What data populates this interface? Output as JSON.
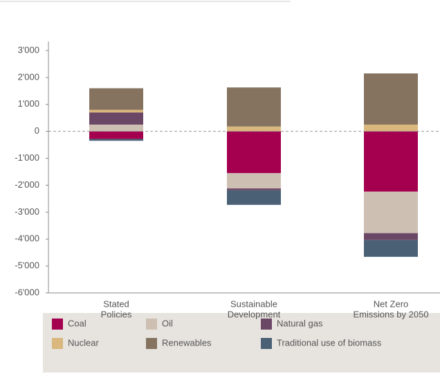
{
  "chart_data": {
    "type": "stacked_bar",
    "categories": [
      [
        "Stated",
        "Policies"
      ],
      [
        "Sustainable",
        "Development"
      ],
      [
        "Net Zero",
        "Emissions by 2050"
      ]
    ],
    "series": [
      {
        "name": "Coal",
        "color": "#a5004f",
        "values": [
          -280,
          -1550,
          -2240
        ]
      },
      {
        "name": "Oil",
        "color": "#cdbfb2",
        "values": [
          250,
          -570,
          -1540
        ]
      },
      {
        "name": "Natural gas",
        "color": "#6b4766",
        "values": [
          450,
          -70,
          -260
        ]
      },
      {
        "name": "Nuclear",
        "color": "#d9b77d",
        "values": [
          100,
          180,
          250
        ]
      },
      {
        "name": "Renewables",
        "color": "#857360",
        "values": [
          800,
          1450,
          1900
        ]
      },
      {
        "name": "Traditional use of biomass",
        "color": "#4a6075",
        "values": [
          -70,
          -540,
          -620
        ]
      }
    ],
    "ylim": [
      -6000,
      3000
    ],
    "yticks": [
      {
        "value": 3000,
        "label": "3'000"
      },
      {
        "value": 2000,
        "label": "2'000"
      },
      {
        "value": 1000,
        "label": "1'000"
      },
      0,
      {
        "value": -1000,
        "label": "-1'000"
      },
      {
        "value": -2000,
        "label": "-2'000"
      },
      {
        "value": -3000,
        "label": "-3'000"
      },
      {
        "value": -4000,
        "label": "-4'000"
      },
      {
        "value": -5000,
        "label": "-5'000"
      },
      {
        "value": -6000,
        "label": "-6'000"
      }
    ],
    "legend": "bottom"
  }
}
